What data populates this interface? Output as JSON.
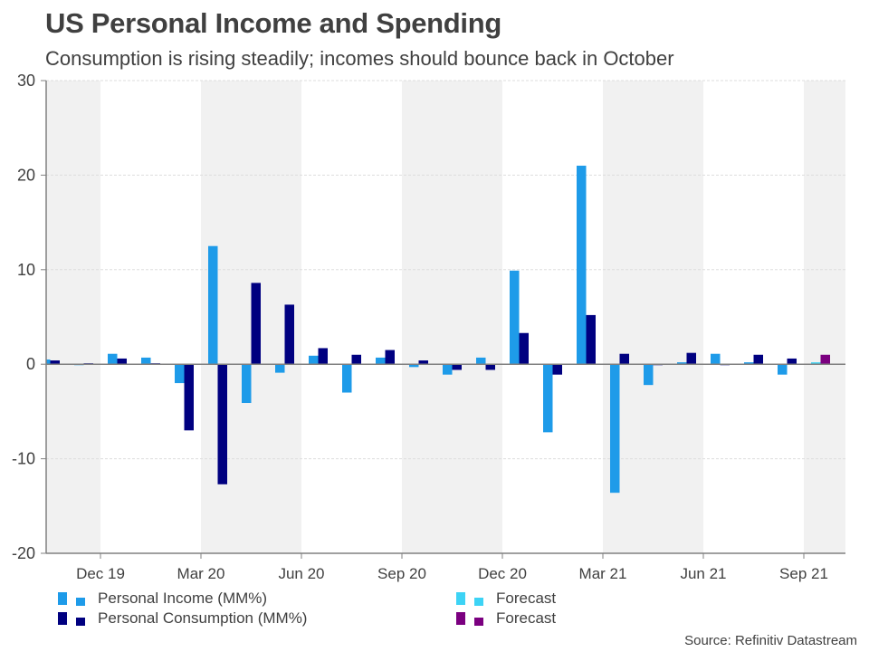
{
  "header": {
    "title": "US Personal Income and Spending",
    "subtitle": "Consumption is rising steadily; incomes should bounce back in October"
  },
  "source": "Source: Refinitiv Datastream",
  "colors": {
    "income": "#1e9be9",
    "consumption": "#000080",
    "income_forecast": "#3dd3f5",
    "consumption_forecast": "#7b0080",
    "band": "#f1f1f1",
    "axis": "#808080",
    "grid": "#dddddd"
  },
  "legend": [
    {
      "label": "Personal Income (MM%)",
      "color_key": "income"
    },
    {
      "label": "Personal Consumption (MM%)",
      "color_key": "consumption"
    },
    {
      "label": "Forecast",
      "color_key": "income_forecast"
    },
    {
      "label": "Forecast",
      "color_key": "consumption_forecast"
    }
  ],
  "chart_data": {
    "type": "bar",
    "title": "US Personal Income and Spending",
    "subtitle": "Consumption is rising steadily; incomes should bounce back in October",
    "xlabel": "",
    "ylabel": "",
    "ylim": [
      -20,
      30
    ],
    "yticks": [
      -20,
      -10,
      0,
      10,
      20,
      30
    ],
    "grid": true,
    "legend_position": "bottom",
    "categories": [
      "Nov 19",
      "Dec 19",
      "Jan 20",
      "Feb 20",
      "Mar 20",
      "Apr 20",
      "May 20",
      "Jun 20",
      "Jul 20",
      "Aug 20",
      "Sep 20",
      "Oct 20",
      "Nov 20",
      "Dec 20",
      "Jan 21",
      "Feb 21",
      "Mar 21",
      "Apr 21",
      "May 21",
      "Jun 21",
      "Jul 21",
      "Aug 21",
      "Sep 21",
      "Oct 21"
    ],
    "xtick_labels": [
      {
        "label": "Dec 19",
        "after_category": "Dec 19"
      },
      {
        "label": "Mar 20",
        "after_category": "Mar 20"
      },
      {
        "label": "Jun 20",
        "after_category": "Jun 20"
      },
      {
        "label": "Sep 20",
        "after_category": "Sep 20"
      },
      {
        "label": "Dec 20",
        "after_category": "Dec 20"
      },
      {
        "label": "Mar 21",
        "after_category": "Mar 21"
      },
      {
        "label": "Jun 21",
        "after_category": "Jun 21"
      },
      {
        "label": "Sep 21",
        "after_category": "Sep 21"
      }
    ],
    "series": [
      {
        "name": "Personal Income (MM%)",
        "color_key": "income",
        "values": [
          0.5,
          -0.1,
          1.1,
          0.7,
          -2.0,
          12.5,
          -4.1,
          -0.9,
          0.9,
          -3.0,
          0.7,
          -0.3,
          -1.1,
          0.7,
          9.9,
          -7.2,
          21.0,
          -13.6,
          -2.2,
          0.2,
          1.1,
          0.2,
          -1.1,
          null
        ]
      },
      {
        "name": "Personal Consumption (MM%)",
        "color_key": "consumption",
        "values": [
          0.4,
          0.1,
          0.6,
          0.1,
          -7.0,
          -12.7,
          8.6,
          6.3,
          1.7,
          1.0,
          1.5,
          0.4,
          -0.6,
          -0.6,
          3.3,
          -1.1,
          5.2,
          1.1,
          -0.1,
          1.2,
          -0.1,
          1.0,
          0.6,
          null
        ]
      },
      {
        "name": "Forecast",
        "color_key": "income_forecast",
        "values": [
          null,
          null,
          null,
          null,
          null,
          null,
          null,
          null,
          null,
          null,
          null,
          null,
          null,
          null,
          null,
          null,
          null,
          null,
          null,
          null,
          null,
          null,
          null,
          0.2
        ]
      },
      {
        "name": "Forecast",
        "color_key": "consumption_forecast",
        "values": [
          null,
          null,
          null,
          null,
          null,
          null,
          null,
          null,
          null,
          null,
          null,
          null,
          null,
          null,
          null,
          null,
          null,
          null,
          null,
          null,
          null,
          null,
          null,
          1.0
        ]
      }
    ]
  }
}
